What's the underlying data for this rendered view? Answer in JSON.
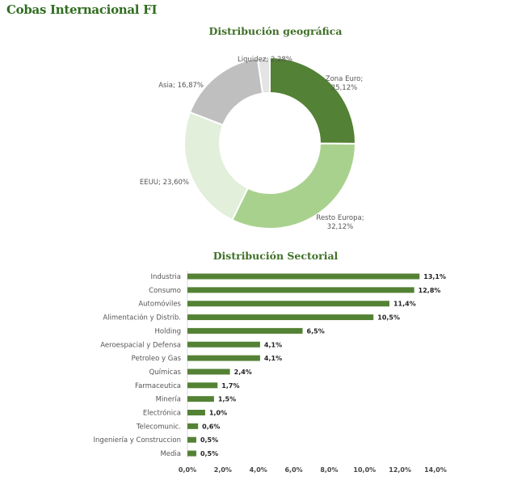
{
  "page": {
    "title": "Cobas Internacional FI"
  },
  "chart_data": [
    {
      "type": "pie",
      "title": "Distribución geográfica",
      "slices": [
        {
          "label": "Zona Euro",
          "value": 25.12,
          "display": "25,12%",
          "color": "#538135"
        },
        {
          "label": "Resto Europa",
          "value": 32.12,
          "display": "32,12%",
          "color": "#a9d18e"
        },
        {
          "label": "EEUU",
          "value": 23.6,
          "display": "23,60%",
          "color": "#e2efda"
        },
        {
          "label": "Asia",
          "value": 16.87,
          "display": "16,87%",
          "color": "#bfbfbf"
        },
        {
          "label": "Liquidez",
          "value": 2.28,
          "display": "2,28%",
          "color": "#e4e4e4"
        }
      ]
    },
    {
      "type": "bar",
      "orientation": "horizontal",
      "title": "Distribución Sectorial",
      "color": "#548235",
      "categories": [
        "Industria",
        "Consumo",
        "Automóviles",
        "Alimentación y Distrib.",
        "Holding",
        "Aeroespacial y Defensa",
        "Petroleo y Gas",
        "Químicas",
        "Farmaceutica",
        "Minería",
        "Electrónica",
        "Telecomunic.",
        "Ingeniería y Construccion",
        "Media"
      ],
      "values": [
        13.1,
        12.8,
        11.4,
        10.5,
        6.5,
        4.1,
        4.1,
        2.4,
        1.7,
        1.5,
        1.0,
        0.6,
        0.5,
        0.5
      ],
      "value_labels": [
        "13,1%",
        "12,8%",
        "11,4%",
        "10,5%",
        "6,5%",
        "4,1%",
        "4,1%",
        "2,4%",
        "1,7%",
        "1,5%",
        "1,0%",
        "0,6%",
        "0,5%",
        "0,5%"
      ],
      "xlim": [
        0,
        14
      ],
      "xticks": [
        "0,0%",
        "2,0%",
        "4,0%",
        "6,0%",
        "8,0%",
        "10,0%",
        "12,0%",
        "14,0%"
      ]
    }
  ]
}
